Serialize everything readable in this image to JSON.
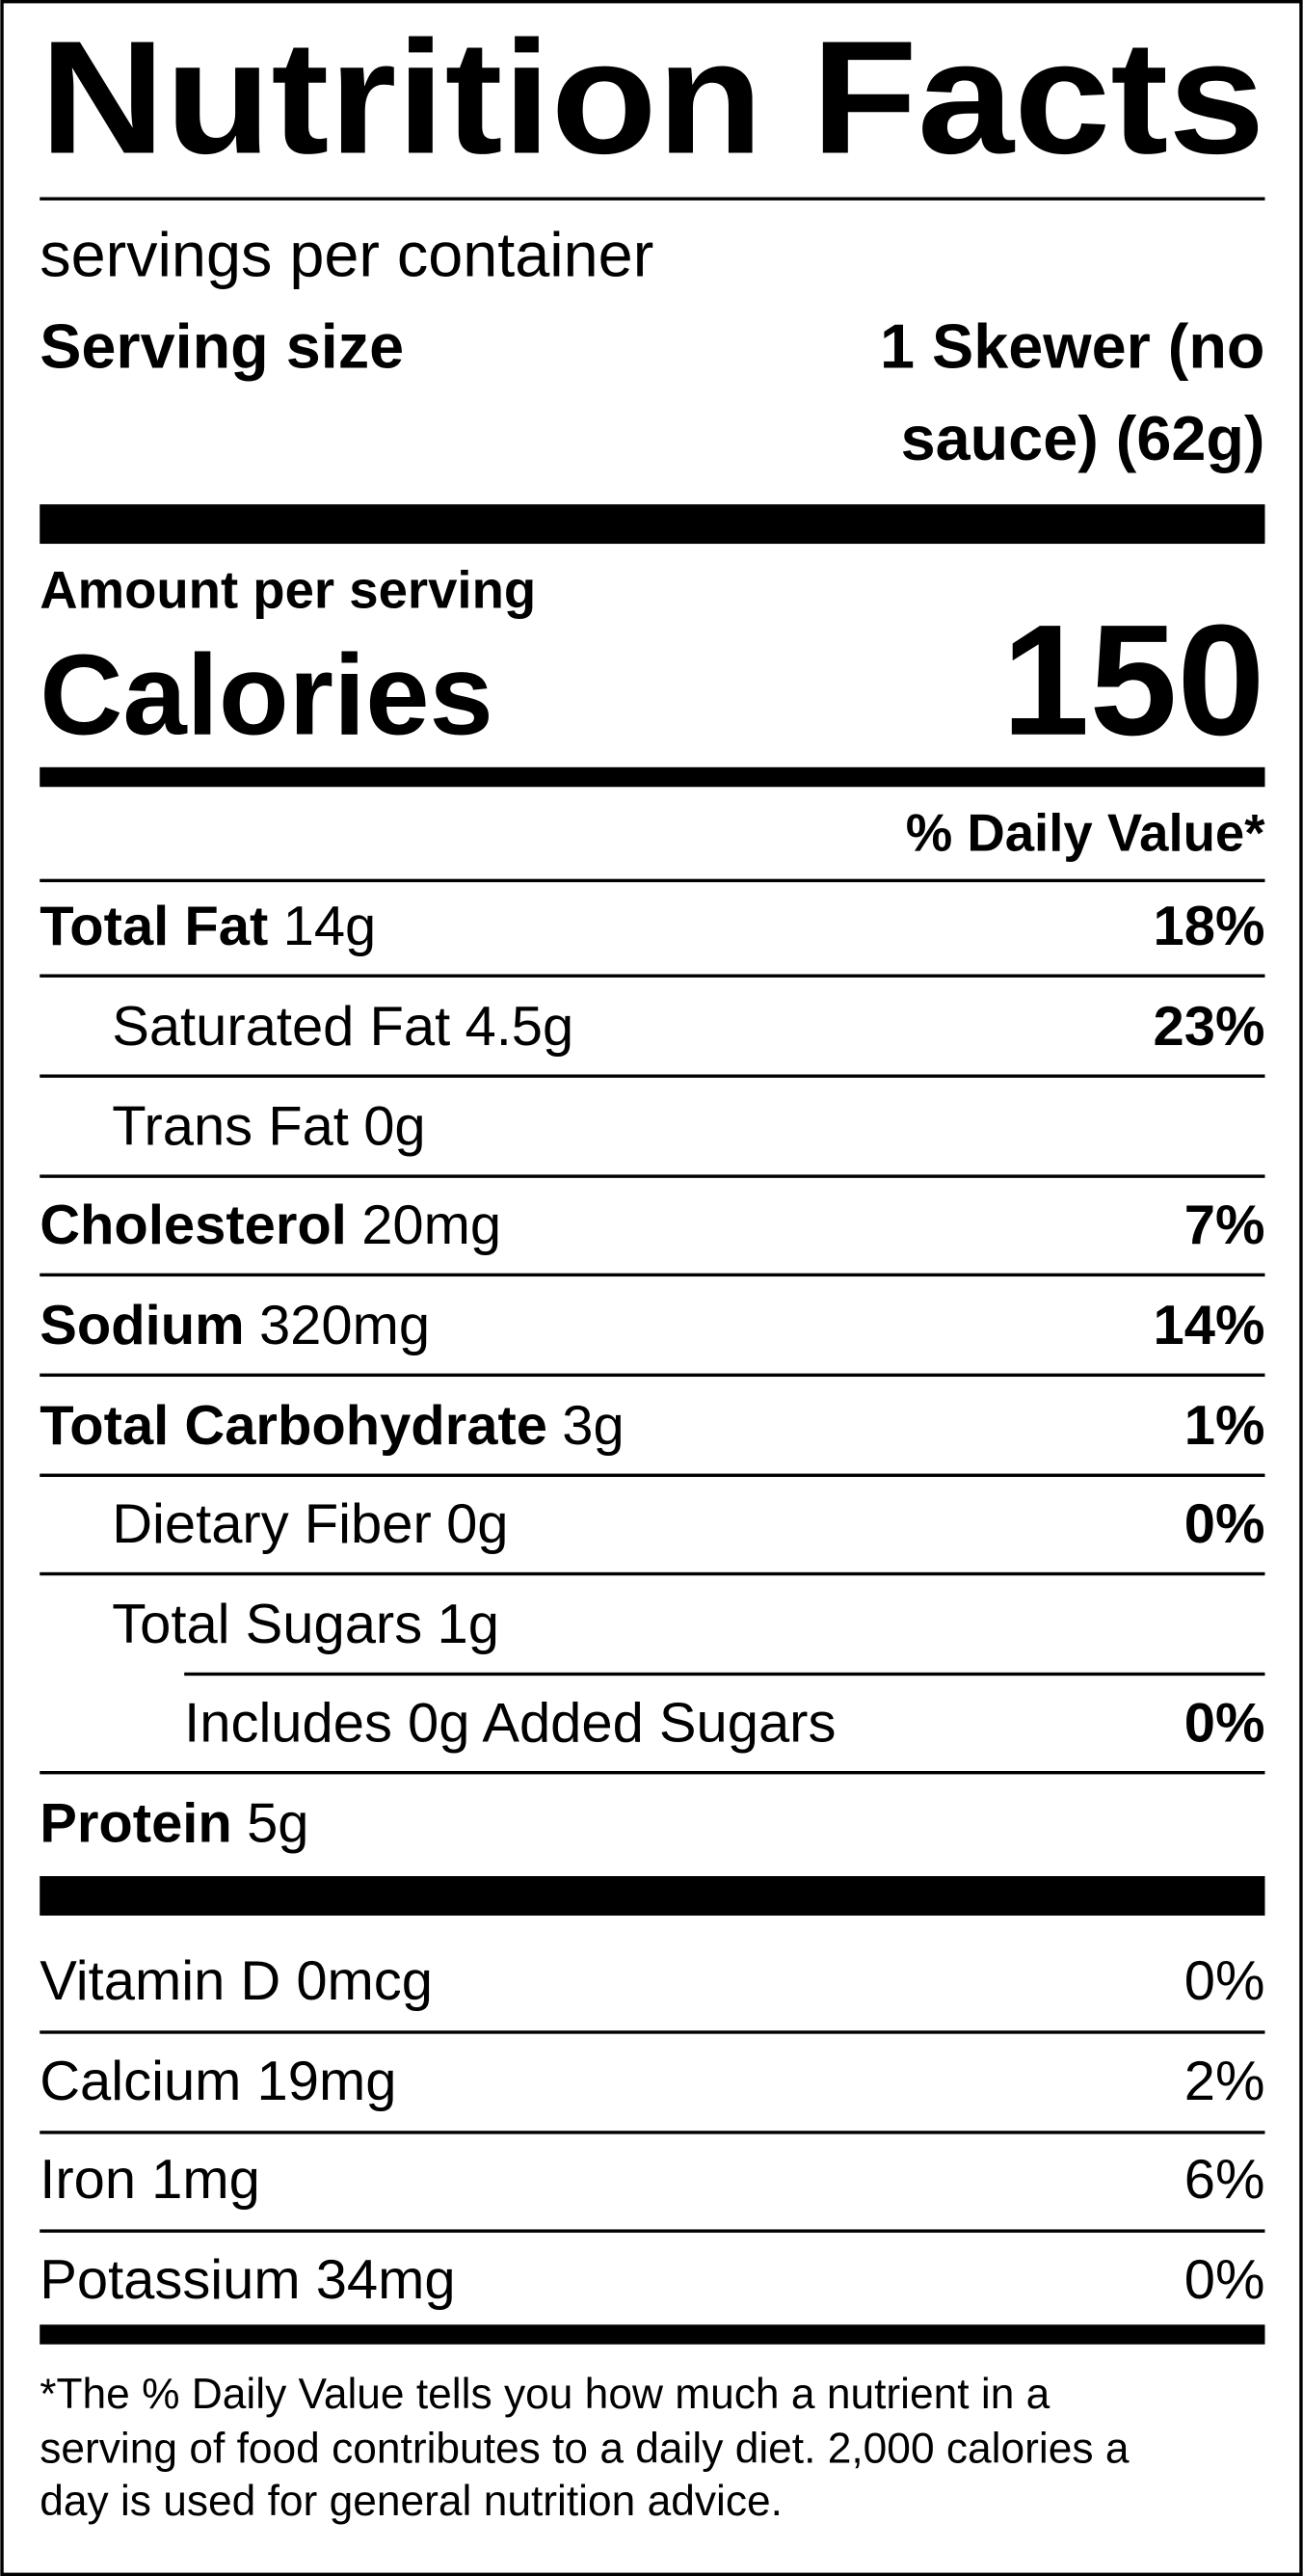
{
  "header": {
    "title": "Nutrition Facts",
    "servings": "servings per container",
    "serving_size_label": "Serving size",
    "serving_size_value": [
      "1 Skewer (no",
      "sauce) (62g)"
    ]
  },
  "calories": {
    "amount_label": "Amount per serving",
    "label": "Calories",
    "value": 150
  },
  "daily_value_header": "% Daily Value*",
  "nutrients": [
    {
      "name": "Total Fat",
      "amount": "14g",
      "dv": "18%"
    },
    {
      "name": "Saturated Fat",
      "amount": "4.5g",
      "dv": "23%"
    },
    {
      "name": "Trans Fat",
      "amount": "0g"
    },
    {
      "name": "Cholesterol",
      "amount": "20mg",
      "dv": "7%"
    },
    {
      "name": "Sodium",
      "amount": "320mg",
      "dv": "14%"
    },
    {
      "name": "Total Carbohydrate",
      "amount": "3g",
      "dv": "1%"
    },
    {
      "name": "Dietary Fiber",
      "amount": "0g",
      "dv": "0%"
    },
    {
      "name": "Total Sugars",
      "amount": "1g"
    },
    {
      "name": "Includes 0g Added Sugars",
      "dv": "0%"
    },
    {
      "name": "Protein",
      "amount": "5g"
    }
  ],
  "vitamins": [
    {
      "name": "Vitamin D 0mcg",
      "dv": "0%"
    },
    {
      "name": "Calcium 19mg",
      "dv": "2%"
    },
    {
      "name": "Iron 1mg",
      "dv": "6%"
    },
    {
      "name": "Potassium 34mg",
      "dv": "0%"
    }
  ],
  "footnote": [
    "*The % Daily Value tells you how much a nutrient in a",
    "serving of food contributes to a daily diet. 2,000 calories a",
    "day is used for general nutrition advice."
  ]
}
